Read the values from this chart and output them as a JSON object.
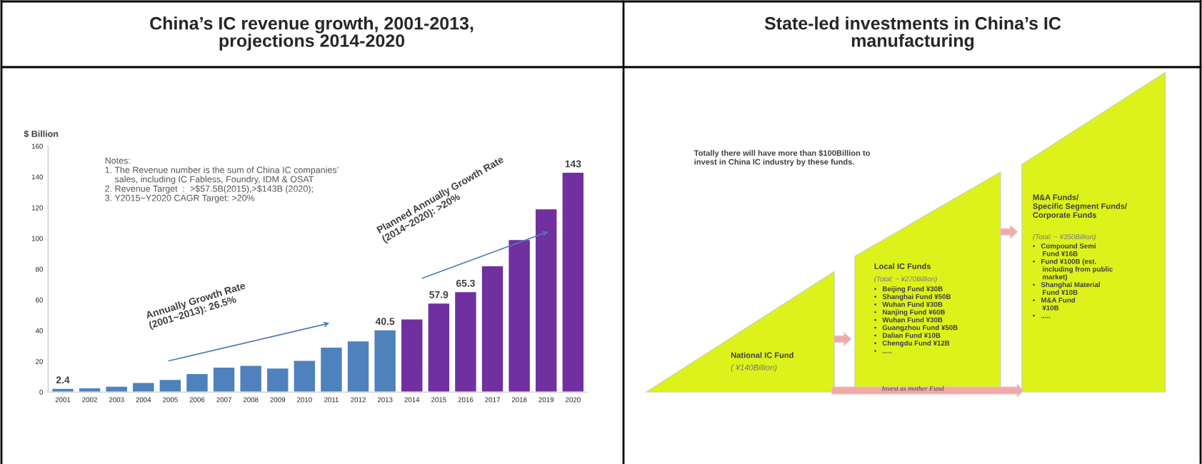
{
  "chart_data": [
    {
      "type": "bar",
      "title": "China’s IC revenue growth, 2001-2013,\nprojections 2014-2020",
      "ylabel": "$ Billion",
      "categories": [
        "2001",
        "2002",
        "2003",
        "2004",
        "2005",
        "2006",
        "2007",
        "2008",
        "2009",
        "2010",
        "2011",
        "2012",
        "2013",
        "2014",
        "2015",
        "2016",
        "2017",
        "2018",
        "2019",
        "2020"
      ],
      "values": [
        2.4,
        2.8,
        3.8,
        6.2,
        8.2,
        12,
        16.2,
        17.4,
        15.7,
        20.6,
        29.2,
        33.3,
        40.5,
        47.6,
        57.9,
        65.3,
        82.2,
        99.2,
        119.2,
        143
      ],
      "colors": [
        "#4f81bd",
        "#4f81bd",
        "#4f81bd",
        "#4f81bd",
        "#4f81bd",
        "#4f81bd",
        "#4f81bd",
        "#4f81bd",
        "#4f81bd",
        "#4f81bd",
        "#4f81bd",
        "#4f81bd",
        "#4f81bd",
        "#7030a0",
        "#7030a0",
        "#7030a0",
        "#7030a0",
        "#7030a0",
        "#7030a0",
        "#7030a0"
      ],
      "value_labels": [
        "2.4",
        null,
        null,
        null,
        null,
        null,
        null,
        null,
        null,
        null,
        null,
        null,
        "40.5",
        null,
        "57.9",
        "65.3",
        null,
        null,
        null,
        "143"
      ],
      "ylim": [
        0,
        160
      ],
      "yticks": [
        0,
        20,
        40,
        60,
        80,
        100,
        120,
        140,
        160
      ],
      "grid": false,
      "annotations": [
        "Notes:\n1. The Revenue number is the sum of China IC companies’\n    sales, including IC Fabless, Foundry, IDM & OSAT\n2. Revenue Target  :  >$57.5B(2015),>$143B (2020);\n3. Y2015~Y2020 CAGR Target: >20%",
        "Annually Growth Rate\n(2001~2013): 26.5%",
        "Planned Annually Growth Rate\n(2014~2020): >20%"
      ]
    },
    {
      "type": "other",
      "title": "State-led investments in China’s IC\nmanufacturing",
      "annotations": [
        "Totally there will have more than $100Billion to\ninvest in China IC industry by these funds.",
        "National IC Fund",
        "( ¥140Billion)",
        "Local IC Funds",
        "(Total: ~ ¥270Billion)",
        "•   Beijing Fund ¥30B\n•   Shanghai Fund ¥50B\n•   Wuhan Fund ¥30B\n•   Nanjing Fund ¥60B\n•   Wuhan Fund ¥30B\n•   Guangzhou Fund ¥50B\n•   Dalian Fund ¥10B\n•   Chengdu Fund ¥12B\n•   .....",
        "Invest as mother Fund",
        "M&A Funds/\nSpecific Segment Funds/\nCorporate Funds",
        "(Total: ~ ¥350Billion)",
        "•   Compound Semi\n     Fund ¥16B\n•   Fund ¥100B (est.\n     including from public\n     market)\n•   Shanghai Material\n     Fund ¥10B\n•   M&A Fund\n     ¥10B\n•   ....."
      ]
    }
  ]
}
